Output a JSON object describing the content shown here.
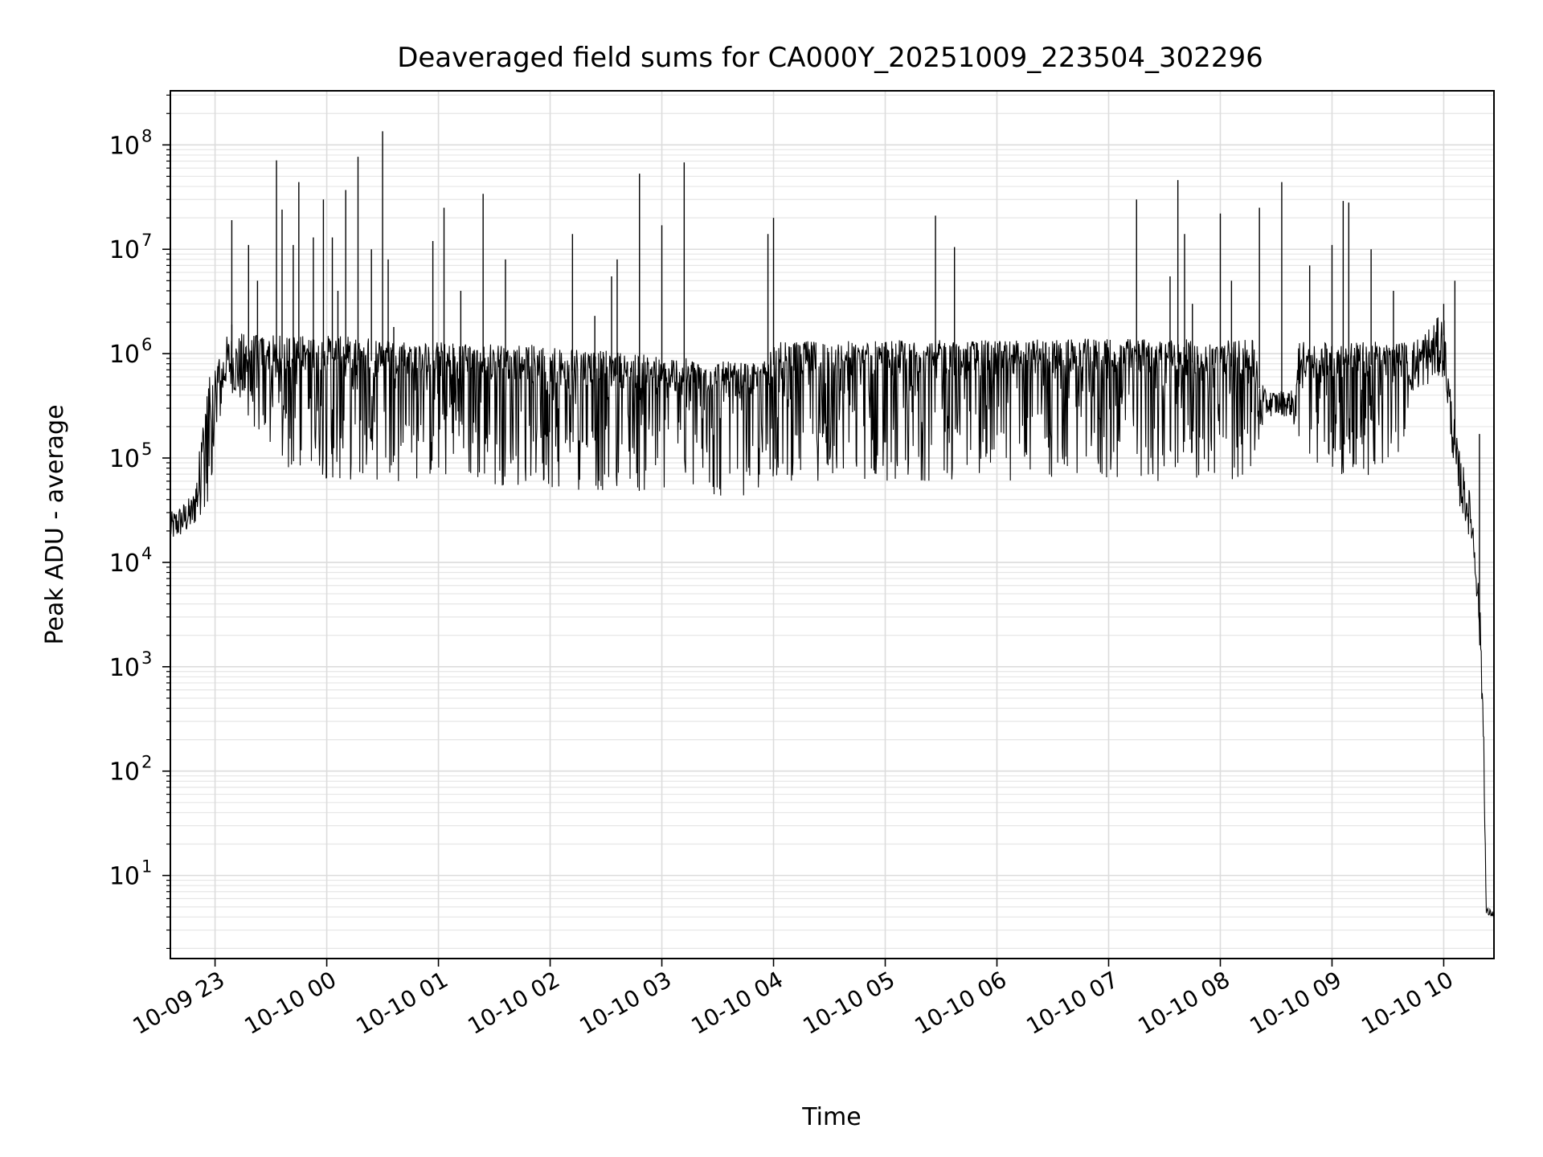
{
  "chart_data": {
    "type": "line",
    "title": "Deaveraged field sums for CA000Y_20251009_223504_302296",
    "xlabel": "Time",
    "ylabel": "Peak ADU - average",
    "yscale": "log",
    "ylim": [
      1.6,
      330000000
    ],
    "xlim_hours": [
      -1.4,
      10.45
    ],
    "grid": true,
    "x_ticks": [
      {
        "h": -1,
        "label": "10-09 23"
      },
      {
        "h": 0,
        "label": "10-10 00"
      },
      {
        "h": 1,
        "label": "10-10 01"
      },
      {
        "h": 2,
        "label": "10-10 02"
      },
      {
        "h": 3,
        "label": "10-10 03"
      },
      {
        "h": 4,
        "label": "10-10 04"
      },
      {
        "h": 5,
        "label": "10-10 05"
      },
      {
        "h": 6,
        "label": "10-10 06"
      },
      {
        "h": 7,
        "label": "10-10 07"
      },
      {
        "h": 8,
        "label": "10-10 08"
      },
      {
        "h": 9,
        "label": "10-10 09"
      },
      {
        "h": 10,
        "label": "10-10 10"
      }
    ],
    "y_ticks": [
      {
        "exp": 1,
        "base": "10",
        "sup": "1"
      },
      {
        "exp": 2,
        "base": "10",
        "sup": "2"
      },
      {
        "exp": 3,
        "base": "10",
        "sup": "3"
      },
      {
        "exp": 4,
        "base": "10",
        "sup": "4"
      },
      {
        "exp": 5,
        "base": "10",
        "sup": "5"
      },
      {
        "exp": 6,
        "base": "10",
        "sup": "6"
      },
      {
        "exp": 7,
        "base": "10",
        "sup": "7"
      },
      {
        "exp": 8,
        "base": "10",
        "sup": "8"
      }
    ],
    "series": [
      {
        "name": "deaveraged field sum",
        "color": "#000000",
        "envelope": [
          {
            "h": -1.4,
            "low": 15000,
            "high": 30000
          },
          {
            "h": -1.2,
            "low": 20000,
            "high": 45000
          },
          {
            "h": -1.05,
            "low": 40000,
            "high": 600000
          },
          {
            "h": -0.9,
            "low": 500000,
            "high": 1500000
          },
          {
            "h": -0.75,
            "low": 300000,
            "high": 1600000
          },
          {
            "h": -0.6,
            "low": 150000,
            "high": 1500000
          },
          {
            "h": -0.4,
            "low": 70000,
            "high": 1500000
          },
          {
            "h": 0.0,
            "low": 60000,
            "high": 1500000
          },
          {
            "h": 1.0,
            "low": 60000,
            "high": 1300000
          },
          {
            "h": 2.0,
            "low": 50000,
            "high": 1200000
          },
          {
            "h": 3.0,
            "low": 45000,
            "high": 950000
          },
          {
            "h": 3.5,
            "low": 40000,
            "high": 850000
          },
          {
            "h": 3.9,
            "low": 45000,
            "high": 800000
          },
          {
            "h": 4.0,
            "low": 60000,
            "high": 1300000
          },
          {
            "h": 5.0,
            "low": 60000,
            "high": 1350000
          },
          {
            "h": 6.0,
            "low": 60000,
            "high": 1350000
          },
          {
            "h": 7.0,
            "low": 60000,
            "high": 1400000
          },
          {
            "h": 8.3,
            "low": 60000,
            "high": 1350000
          },
          {
            "h": 8.4,
            "low": 250000,
            "high": 450000
          },
          {
            "h": 8.65,
            "low": 250000,
            "high": 450000
          },
          {
            "h": 8.7,
            "low": 60000,
            "high": 1300000
          },
          {
            "h": 9.6,
            "low": 70000,
            "high": 1300000
          },
          {
            "h": 9.7,
            "low": 400000,
            "high": 1300000
          },
          {
            "h": 10.0,
            "low": 600000,
            "high": 2500000
          },
          {
            "h": 10.05,
            "low": 200000,
            "high": 600000
          },
          {
            "h": 10.12,
            "low": 40000,
            "high": 150000
          },
          {
            "h": 10.25,
            "low": 15000,
            "high": 40000
          },
          {
            "h": 10.3,
            "low": 4000,
            "high": 10000
          },
          {
            "h": 10.33,
            "low": 1000,
            "high": 3000
          },
          {
            "h": 10.36,
            "low": 100,
            "high": 300
          },
          {
            "h": 10.38,
            "low": 4,
            "high": 5
          },
          {
            "h": 10.45,
            "low": 4,
            "high": 4.5
          }
        ],
        "spikes": [
          {
            "h": -0.85,
            "v": 19000000
          },
          {
            "h": -0.7,
            "v": 11000000
          },
          {
            "h": -0.62,
            "v": 5000000
          },
          {
            "h": -0.85,
            "v": 1900000
          },
          {
            "h": -0.45,
            "v": 71000000
          },
          {
            "h": -0.4,
            "v": 24000000
          },
          {
            "h": -0.3,
            "v": 11000000
          },
          {
            "h": -0.25,
            "v": 44000000
          },
          {
            "h": -0.12,
            "v": 13000000
          },
          {
            "h": -0.03,
            "v": 30000000
          },
          {
            "h": 0.05,
            "v": 13000000
          },
          {
            "h": 0.1,
            "v": 4000000
          },
          {
            "h": 0.17,
            "v": 37000000
          },
          {
            "h": 0.28,
            "v": 77000000
          },
          {
            "h": 0.4,
            "v": 10000000
          },
          {
            "h": 0.5,
            "v": 135000000
          },
          {
            "h": 0.55,
            "v": 8000000
          },
          {
            "h": 0.6,
            "v": 1800000
          },
          {
            "h": 0.95,
            "v": 12000000
          },
          {
            "h": 1.05,
            "v": 25000000
          },
          {
            "h": 1.2,
            "v": 4000000
          },
          {
            "h": 1.4,
            "v": 34000000
          },
          {
            "h": 1.6,
            "v": 8000000
          },
          {
            "h": 2.2,
            "v": 14000000
          },
          {
            "h": 2.4,
            "v": 2300000
          },
          {
            "h": 2.55,
            "v": 5500000
          },
          {
            "h": 2.6,
            "v": 8000000
          },
          {
            "h": 2.8,
            "v": 53000000
          },
          {
            "h": 3.0,
            "v": 17000000
          },
          {
            "h": 3.2,
            "v": 68000000
          },
          {
            "h": 3.95,
            "v": 14000000
          },
          {
            "h": 4.0,
            "v": 20000000
          },
          {
            "h": 5.45,
            "v": 21000000
          },
          {
            "h": 5.62,
            "v": 10500000
          },
          {
            "h": 7.25,
            "v": 30000000
          },
          {
            "h": 7.55,
            "v": 5500000
          },
          {
            "h": 7.62,
            "v": 46000000
          },
          {
            "h": 7.68,
            "v": 14000000
          },
          {
            "h": 7.75,
            "v": 3000000
          },
          {
            "h": 8.0,
            "v": 22000000
          },
          {
            "h": 8.1,
            "v": 5000000
          },
          {
            "h": 8.35,
            "v": 25000000
          },
          {
            "h": 8.55,
            "v": 44000000
          },
          {
            "h": 8.8,
            "v": 7000000
          },
          {
            "h": 9.0,
            "v": 11000000
          },
          {
            "h": 9.1,
            "v": 29000000
          },
          {
            "h": 9.15,
            "v": 28000000
          },
          {
            "h": 9.35,
            "v": 10000000
          },
          {
            "h": 9.55,
            "v": 4000000
          },
          {
            "h": 10.0,
            "v": 3000000
          },
          {
            "h": 10.1,
            "v": 5000000
          },
          {
            "h": 10.32,
            "v": 170000
          }
        ]
      }
    ]
  }
}
